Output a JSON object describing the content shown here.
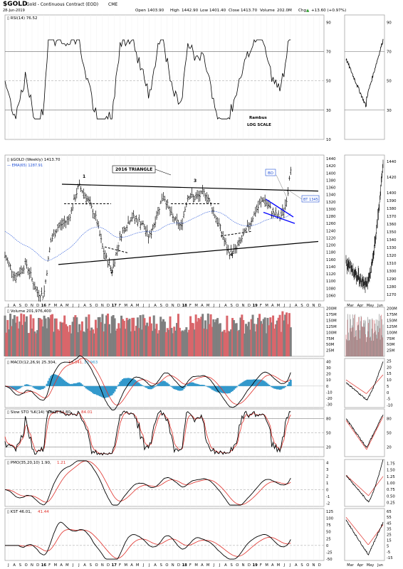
{
  "header": {
    "symbol": "$GOLD",
    "name": "Gold - Continuous Contract (EOD)",
    "exchange": "CME",
    "date": "28-Jun-2019",
    "open_label": "Open",
    "open": "1403.90",
    "high_label": "High",
    "high": "1442.90",
    "low_label": "Low",
    "low": "1401.40",
    "close_label": "Close",
    "close": "1413.70",
    "volume_label": "Volume",
    "volume": "202.0M",
    "chg_label": "Chg",
    "chg": "+13.60 (+0.97%)",
    "chg_arrow": "▲"
  },
  "panels": {
    "rsi": {
      "label": "RSI(14) 76.52",
      "ticks": [
        "90",
        "70",
        "50",
        "30",
        "10"
      ],
      "mini_ticks": [
        "90",
        "70",
        "50",
        "30"
      ]
    },
    "price": {
      "label": "$GOLD (Weekly) 1413.70",
      "ema_label": "EMA(65)",
      "ema_value": "1287.91",
      "ticks": [
        "1440",
        "1420",
        "1400",
        "1380",
        "1360",
        "1340",
        "1320",
        "1300",
        "1280",
        "1260",
        "1240",
        "1220",
        "1200",
        "1180",
        "1160",
        "1140",
        "1120",
        "1100",
        "1080",
        "1060"
      ],
      "mini_ticks": [
        "1440",
        "1420",
        "1400",
        "1390",
        "1380",
        "1370",
        "1360",
        "1350",
        "1340",
        "1330",
        "1320",
        "1310",
        "1300",
        "1290",
        "1280",
        "1270"
      ]
    },
    "volume": {
      "label": "Volume 201,976,400",
      "ticks": [
        "200M",
        "175M",
        "150M",
        "125M",
        "100M",
        "75M",
        "50M",
        "25M"
      ],
      "mini_ticks": [
        "200M",
        "175M",
        "150M",
        "125M",
        "100M",
        "75M",
        "50M",
        "25M"
      ]
    },
    "macd": {
      "label": "MACD(12,26,9)",
      "v1": "25.304",
      "v2": "14.341",
      "v3": "10.963",
      "ticks": [
        "40",
        "30",
        "20",
        "10",
        "0",
        "-10",
        "-20",
        "-30"
      ],
      "mini_ticks": [
        "25",
        "20",
        "15",
        "10",
        "5",
        "0",
        "-5",
        "-10"
      ]
    },
    "sto": {
      "label": "Slow STO %K(14) %D(3)",
      "k": "84.80",
      "d": "84.01",
      "ticks": [
        "80",
        "50",
        "20"
      ],
      "mini_ticks": [
        "80",
        "50",
        "20"
      ]
    },
    "pmo": {
      "label": "PMO(35,20,10)",
      "v1": "1.90",
      "v2": "1.21",
      "ticks": [
        "4",
        "3",
        "2",
        "1",
        "0",
        "-1",
        "-2"
      ],
      "mini_ticks": [
        "1.75",
        "1.50",
        "1.25",
        "1.00",
        "0.75",
        "0.50",
        "0.25"
      ]
    },
    "kst": {
      "label": "KST",
      "v1": "46.01",
      "v2": "41.44",
      "ticks": [
        "125",
        "100",
        "75",
        "50",
        "25",
        "0",
        "-25",
        "-50"
      ],
      "mini_ticks": [
        "65",
        "55",
        "45",
        "35",
        "25",
        "15",
        "5",
        "-5",
        "-15"
      ]
    }
  },
  "annotations": {
    "triangle_title": "2016 TRIANGLE",
    "points": [
      "1",
      "2",
      "3",
      "4"
    ],
    "bo": "BO",
    "bt": "BT 1345",
    "author": "Rambus",
    "scale": "LOG SCALE"
  },
  "x_axis": {
    "main": [
      "J",
      "A",
      "S",
      "O",
      "N",
      "D",
      "16",
      "F",
      "M",
      "A",
      "M",
      "J",
      "J",
      "A",
      "S",
      "O",
      "N",
      "D",
      "17",
      "F",
      "M",
      "A",
      "M",
      "J",
      "J",
      "A",
      "S",
      "O",
      "N",
      "D",
      "18",
      "F",
      "M",
      "A",
      "M",
      "J",
      "J",
      "A",
      "S",
      "O",
      "N",
      "D",
      "19",
      "F",
      "M",
      "A",
      "M",
      "J",
      "J",
      "A",
      "S",
      "O",
      "N",
      "D"
    ],
    "mini": [
      "Mar",
      "Apr",
      "May",
      "Jun"
    ]
  },
  "colors": {
    "up_bar": "#7f7f7f",
    "down_bar": "#d9666b",
    "blue": "#0000ff",
    "macd_hist": "#3399cc",
    "signal": "#e0302a",
    "link": "#1f4fd6"
  },
  "chart_data": [
    {
      "type": "line",
      "title": "$GOLD (Weekly) 1413.70",
      "x_labels": [
        "16",
        "17",
        "18",
        "19"
      ],
      "series": [
        {
          "name": "$GOLD (Weekly)",
          "values": [
            1170,
            1140,
            1100,
            1080,
            1060,
            1070,
            1105,
            1180,
            1240,
            1240,
            1270,
            1320,
            1340,
            1360,
            1330,
            1300,
            1310,
            1290,
            1260,
            1210,
            1180,
            1140,
            1130,
            1120,
            1190,
            1230,
            1230,
            1250,
            1250,
            1260,
            1240,
            1270,
            1290,
            1320,
            1330,
            1310,
            1290,
            1270,
            1275,
            1290,
            1340,
            1340,
            1350,
            1335,
            1320,
            1300,
            1260,
            1220,
            1200,
            1200,
            1190,
            1210,
            1230,
            1240,
            1250,
            1260,
            1270,
            1290,
            1300,
            1320,
            1320,
            1310,
            1300,
            1290,
            1280,
            1290,
            1350,
            1420,
            1410
          ]
        },
        {
          "name": "EMA(65)",
          "values": [
            1240,
            1230,
            1220,
            1210,
            1200,
            1190,
            1185,
            1195,
            1215,
            1230,
            1245,
            1255,
            1260,
            1262,
            1262,
            1258,
            1250,
            1240,
            1232,
            1228,
            1225,
            1228,
            1232,
            1236,
            1240,
            1245,
            1250,
            1255,
            1262,
            1268,
            1272,
            1275,
            1276,
            1276,
            1274,
            1270,
            1266,
            1262,
            1258,
            1252,
            1247,
            1244,
            1243,
            1245,
            1248,
            1254,
            1262,
            1270,
            1280,
            1288
          ]
        }
      ],
      "triangle_upper": [
        [
          2015.45,
          1369
        ],
        [
          2019.6,
          1350
        ]
      ],
      "triangle_lower": [
        [
          2015.45,
          1145
        ],
        [
          2019.6,
          1208
        ]
      ],
      "ylim": [
        1045,
        1450
      ]
    },
    {
      "type": "line",
      "title": "RSI(14) 76.52",
      "series": [
        {
          "name": "RSI(14)",
          "values": [
            55,
            50,
            45,
            40,
            40,
            45,
            60,
            65,
            70,
            68,
            62,
            58,
            55,
            52,
            48,
            44,
            38,
            35,
            33,
            40,
            50,
            55,
            60,
            66,
            62,
            58,
            55,
            52,
            50,
            55,
            60,
            64,
            62,
            60,
            57,
            55,
            52,
            50,
            48,
            45,
            38,
            33,
            35,
            42,
            50,
            55,
            58,
            60,
            62,
            65,
            68,
            70,
            72,
            76.52
          ]
        }
      ],
      "ylim": [
        10,
        95
      ]
    },
    {
      "type": "bar",
      "title": "Volume 201,976,400",
      "ylim": [
        0,
        200
      ]
    },
    {
      "type": "line",
      "title": "MACD(12,26,9)",
      "series": [
        {
          "name": "MACD",
          "values": [
            25.304
          ]
        },
        {
          "name": "signal",
          "values": [
            14.341
          ]
        },
        {
          "name": "histogram",
          "values": [
            10.963
          ]
        }
      ],
      "ylim": [
        -35,
        45
      ]
    },
    {
      "type": "line",
      "title": "Slow STO %K(14) %D(3)",
      "series": [
        {
          "name": "%K",
          "values": [
            84.8
          ]
        },
        {
          "name": "%D",
          "values": [
            84.01
          ]
        }
      ],
      "ylim": [
        0,
        100
      ]
    },
    {
      "type": "line",
      "title": "PMO(35,20,10)",
      "series": [
        {
          "name": "PMO",
          "values": [
            1.9
          ]
        },
        {
          "name": "signal",
          "values": [
            1.21
          ]
        }
      ],
      "ylim": [
        -2.5,
        4.5
      ]
    },
    {
      "type": "line",
      "title": "KST",
      "series": [
        {
          "name": "KST",
          "values": [
            46.01
          ]
        },
        {
          "name": "signal",
          "values": [
            41.44
          ]
        }
      ],
      "ylim": [
        -55,
        130
      ]
    }
  ]
}
